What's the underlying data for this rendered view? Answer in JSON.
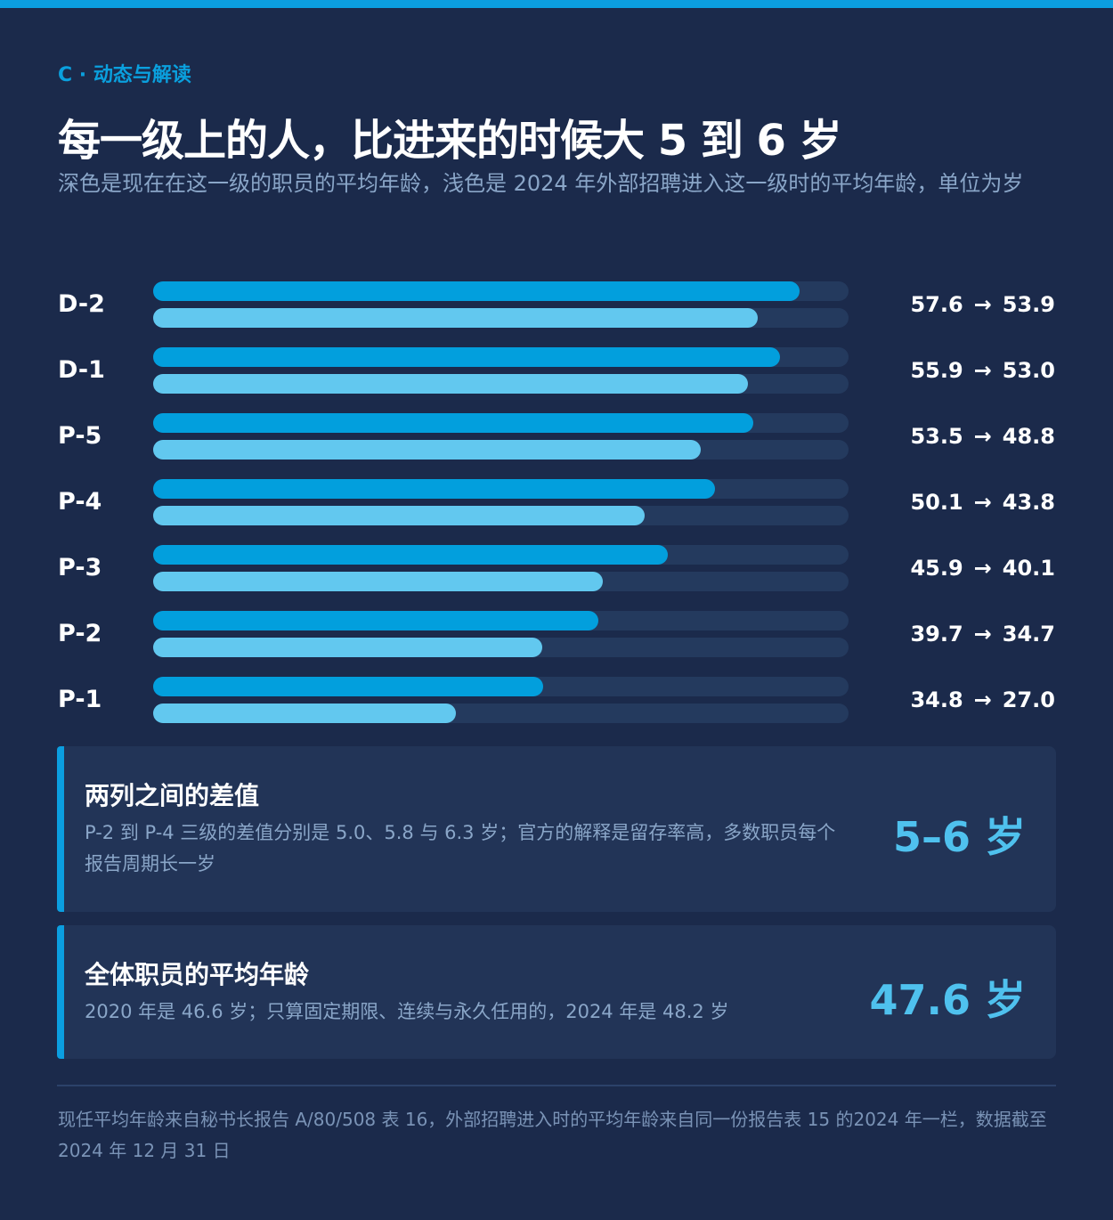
{
  "header": {
    "eyebrow": "C · 动态与解读",
    "title": "每一级上的人，比进来的时候大 5 到 6 岁",
    "subtitle": "深色是现在在这一级的职员的平均年龄，浅色是 2024 年外部招聘进入这一级时的平均年龄，单位为岁"
  },
  "chart_data": {
    "type": "bar",
    "orientation": "horizontal",
    "categories": [
      "D-2",
      "D-1",
      "P-5",
      "P-4",
      "P-3",
      "P-2",
      "P-1"
    ],
    "series": [
      {
        "values": [
          57.6,
          55.9,
          53.5,
          50.1,
          45.9,
          39.7,
          34.8
        ],
        "color": "#029fdd"
      },
      {
        "values": [
          53.9,
          53.0,
          48.8,
          43.8,
          40.1,
          34.7,
          27.0
        ],
        "color": "#62c8ef"
      }
    ],
    "xlim": [
      0,
      62
    ],
    "arrow": "→",
    "grid": false,
    "legend": "none"
  },
  "cards": [
    {
      "title": "两列之间的差值",
      "body": "P-2 到 P-4 三级的差值分别是 5.0、5.8 与 6.3 岁；官方的解释是留存率高，多数职员每个报告周期长一岁",
      "big": "5–6 岁"
    },
    {
      "title": "全体职员的平均年龄",
      "body": "2020 年是 46.6 岁；只算固定期限、连续与永久任用的，2024 年是 48.2 岁",
      "big": "47.6 岁"
    }
  ],
  "footnote": "现任平均年龄来自秘书长报告 A/80/508 表 16，外部招聘进入时的平均年龄来自同一份报告表 15 的2024 年一栏，数据截至 2024 年 12 月 31 日",
  "colors": {
    "background": "#1b2a4b",
    "accent": "#0b9ee0",
    "track": "#243a5e",
    "card": "#223457",
    "big_number": "#4fc1ee"
  }
}
